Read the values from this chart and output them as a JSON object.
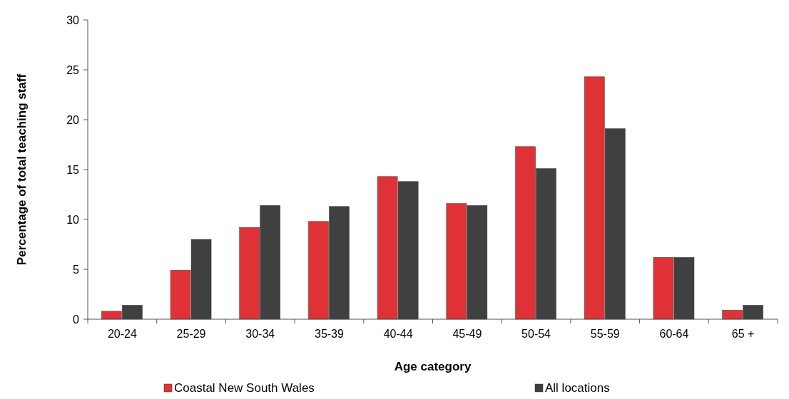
{
  "chart_data": {
    "type": "bar",
    "xlabel": "Age category",
    "ylabel": "Percentage of total teaching staff",
    "categories": [
      "20-24",
      "25-29",
      "30-34",
      "35-39",
      "40-44",
      "45-49",
      "50-54",
      "55-59",
      "60-64",
      "65 +"
    ],
    "series": [
      {
        "name": "Coastal New South Wales",
        "color": "#e03236",
        "values": [
          0.8,
          4.9,
          9.2,
          9.8,
          14.3,
          11.6,
          17.3,
          24.3,
          6.2,
          0.9
        ]
      },
      {
        "name": "All locations",
        "color": "#404040",
        "values": [
          1.4,
          8.0,
          11.4,
          11.3,
          13.8,
          11.4,
          15.1,
          19.1,
          6.2,
          1.4
        ]
      }
    ],
    "ylim": [
      0,
      30
    ],
    "yticks": [
      0,
      5,
      10,
      15,
      20,
      25,
      30
    ],
    "legend": "bottom"
  }
}
